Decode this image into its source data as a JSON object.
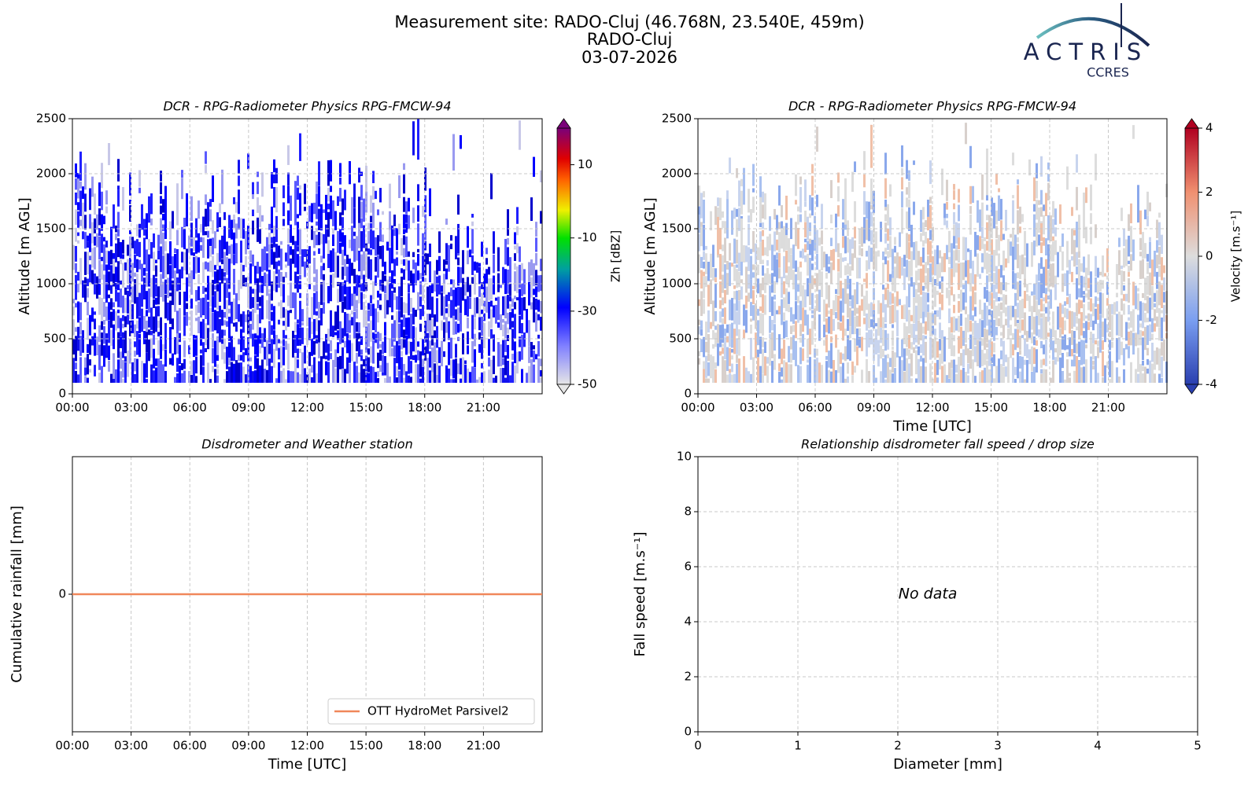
{
  "header": {
    "title_lines": [
      "Measurement site: RADO-Cluj (46.768N, 23.540E, 459m)",
      "RADO-Cluj",
      "03-07-2026"
    ],
    "logo": {
      "text": "ACTRIS",
      "subtext": "CCRES"
    }
  },
  "chart_data": [
    {
      "type": "heatmap",
      "title": "DCR - RPG-Radiometer Physics RPG-FMCW-94",
      "y_label": "Altitude [m AGL]",
      "xlim": [
        0,
        24
      ],
      "xticks": [
        {
          "value": 0,
          "label": "00:00"
        },
        {
          "value": 3,
          "label": "03:00"
        },
        {
          "value": 6,
          "label": "06:00"
        },
        {
          "value": 9,
          "label": "09:00"
        },
        {
          "value": 12,
          "label": "12:00"
        },
        {
          "value": 15,
          "label": "15:00"
        },
        {
          "value": 18,
          "label": "18:00"
        },
        {
          "value": 21,
          "label": "21:00"
        }
      ],
      "ylim": [
        0,
        2500
      ],
      "yticks": [
        0,
        500,
        1000,
        1500,
        2000,
        2500
      ],
      "grid": true,
      "colorbar": {
        "label": "Zh [dBZ]",
        "lim": [
          -50,
          20
        ],
        "ticks": [
          -50,
          -30,
          -10,
          10
        ],
        "colormap": "zh"
      }
    },
    {
      "type": "heatmap",
      "title": "DCR - RPG-Radiometer Physics RPG-FMCW-94",
      "y_label": "Altitude [m AGL]",
      "x_label": "Time [UTC]",
      "xlim": [
        0,
        24
      ],
      "xticks": [
        {
          "value": 0,
          "label": "00:00"
        },
        {
          "value": 3,
          "label": "03:00"
        },
        {
          "value": 6,
          "label": "06:00"
        },
        {
          "value": 9,
          "label": "09:00"
        },
        {
          "value": 12,
          "label": "12:00"
        },
        {
          "value": 15,
          "label": "15:00"
        },
        {
          "value": 18,
          "label": "18:00"
        },
        {
          "value": 21,
          "label": "21:00"
        }
      ],
      "ylim": [
        0,
        2500
      ],
      "yticks": [
        0,
        500,
        1000,
        1500,
        2000,
        2500
      ],
      "grid": true,
      "colorbar": {
        "label": "Velocity [m.s⁻¹]",
        "lim": [
          -4,
          4
        ],
        "ticks": [
          -4,
          -2,
          0,
          2,
          4
        ],
        "colormap": "velocity"
      }
    },
    {
      "type": "line",
      "title": "Disdrometer and Weather station",
      "y_label": "Cumulative rainfall [mm]",
      "x_label": "Time [UTC]",
      "xlim": [
        0,
        24
      ],
      "xticks": [
        {
          "value": 0,
          "label": "00:00"
        },
        {
          "value": 3,
          "label": "03:00"
        },
        {
          "value": 6,
          "label": "06:00"
        },
        {
          "value": 9,
          "label": "09:00"
        },
        {
          "value": 12,
          "label": "12:00"
        },
        {
          "value": 15,
          "label": "15:00"
        },
        {
          "value": 18,
          "label": "18:00"
        },
        {
          "value": 21,
          "label": "21:00"
        }
      ],
      "ylim": [
        -0.05,
        0.05
      ],
      "yticks": [
        0
      ],
      "grid": true,
      "legend": "lower right",
      "x": [
        0,
        24
      ],
      "series": [
        {
          "name": "OTT HydroMet Parsivel2",
          "color": "#f0875a",
          "values": [
            0,
            0
          ]
        }
      ]
    },
    {
      "type": "scatter",
      "title": "Relationship disdrometer fall speed / drop size",
      "y_label": "Fall speed [m.s⁻¹]",
      "x_label": "Diameter [mm]",
      "xlim": [
        0,
        5
      ],
      "xticks": [
        0,
        1,
        2,
        3,
        4,
        5
      ],
      "ylim": [
        0,
        10
      ],
      "yticks": [
        0,
        2,
        4,
        6,
        8,
        10
      ],
      "grid": true,
      "annotation": "No data"
    }
  ]
}
